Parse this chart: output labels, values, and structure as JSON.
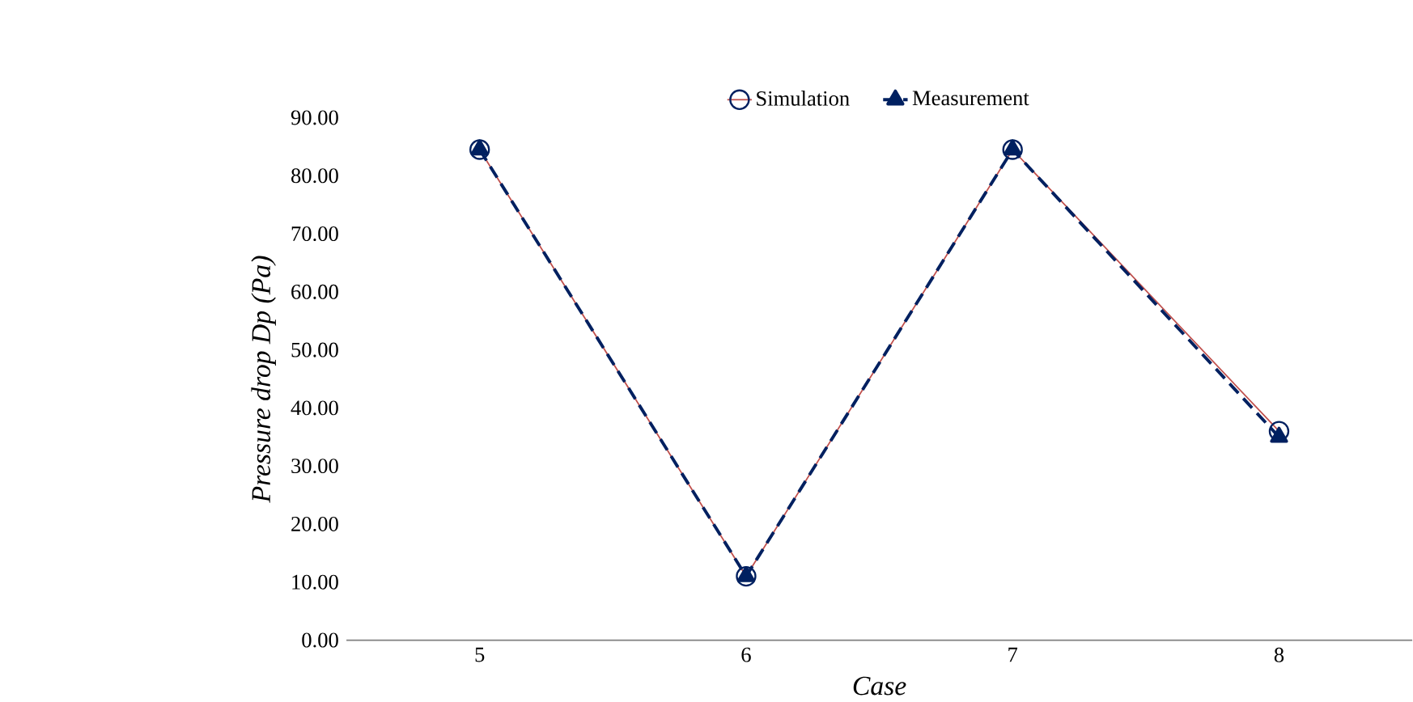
{
  "chart_data": {
    "type": "line",
    "xlabel": "Case",
    "ylabel": "Pressure drop Dp  (Pa)",
    "categories": [
      "5",
      "6",
      "7",
      "8"
    ],
    "series": [
      {
        "name": "Simulation",
        "color": "#c0504d",
        "marker": "circle",
        "line_style": "solid",
        "values": [
          84.5,
          11.0,
          84.5,
          36.0
        ]
      },
      {
        "name": "Measurement",
        "color": "#002060",
        "marker": "triangle",
        "line_style": "dashed",
        "values": [
          84.5,
          11.0,
          84.5,
          35.0
        ]
      }
    ],
    "ylim": [
      0,
      90
    ],
    "yticks": [
      {
        "value": 0,
        "label": "0.00"
      },
      {
        "value": 10,
        "label": "10.00"
      },
      {
        "value": 20,
        "label": "20.00"
      },
      {
        "value": 30,
        "label": "30.00"
      },
      {
        "value": 40,
        "label": "40.00"
      },
      {
        "value": 50,
        "label": "50.00"
      },
      {
        "value": 60,
        "label": "60.00"
      },
      {
        "value": 70,
        "label": "70.00"
      },
      {
        "value": 80,
        "label": "80.00"
      },
      {
        "value": 90,
        "label": "90.00"
      }
    ],
    "grid": false,
    "legend": "top"
  }
}
